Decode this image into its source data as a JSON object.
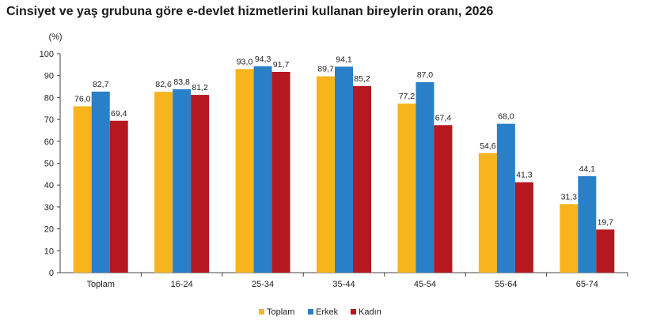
{
  "chart_data": {
    "type": "bar",
    "title": "Cinsiyet ve yaş grubuna göre e-devlet hizmetlerini kullanan bireylerin oranı, 2026",
    "ylabel": "(%)",
    "ylim": [
      0,
      100
    ],
    "yticks": [
      "0",
      "10",
      "20",
      "30",
      "40",
      "50",
      "60",
      "70",
      "80",
      "90",
      "100"
    ],
    "categories": [
      "Toplam",
      "16-24",
      "25-34",
      "35-44",
      "45-54",
      "55-64",
      "65-74"
    ],
    "series": [
      {
        "name": "Toplam",
        "color": "#f7b41d",
        "values": [
          76.0,
          82.6,
          93.0,
          89.7,
          77.2,
          54.6,
          31.3
        ],
        "labels": [
          "76,0",
          "82,6",
          "93,0",
          "89,7",
          "77,2",
          "54,6",
          "31,3"
        ]
      },
      {
        "name": "Erkek",
        "color": "#2a7fc9",
        "values": [
          82.7,
          83.8,
          94.3,
          94.1,
          87.0,
          68.0,
          44.1
        ],
        "labels": [
          "82,7",
          "83,8",
          "94,3",
          "94,1",
          "87,0",
          "68,0",
          "44,1"
        ]
      },
      {
        "name": "Kadın",
        "color": "#b5181f",
        "values": [
          69.4,
          81.2,
          91.7,
          85.2,
          67.4,
          41.3,
          19.7
        ],
        "labels": [
          "69,4",
          "81,2",
          "91,7",
          "85,2",
          "67,4",
          "41,3",
          "19,7"
        ]
      }
    ],
    "grid": false,
    "legend_position": "bottom-center"
  }
}
